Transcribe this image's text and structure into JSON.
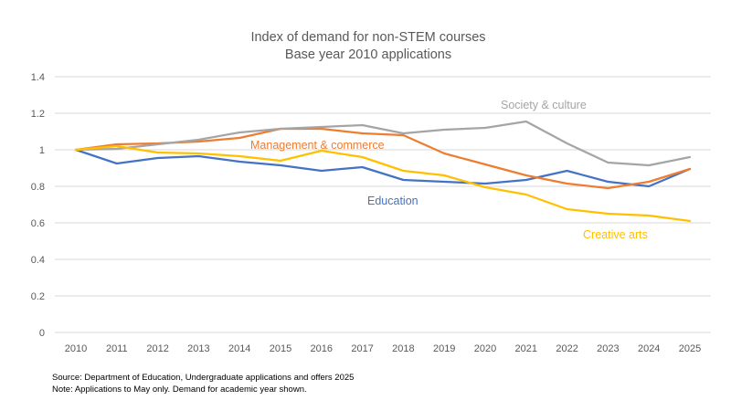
{
  "chart_data": {
    "type": "line",
    "title": "Index of demand for non-STEM courses",
    "subtitle": "Base year 2010 applications",
    "xlabel": "",
    "ylabel": "",
    "ylim": [
      0,
      1.4
    ],
    "yticks": [
      0,
      0.2,
      0.4,
      0.6,
      0.8,
      1,
      1.2,
      1.4
    ],
    "ytick_labels": [
      "0",
      "0.2",
      "0.4",
      "0.6",
      "0.8",
      "1",
      "1.2",
      "1.4"
    ],
    "grid": true,
    "legend": "inline-labels",
    "x": [
      "2010",
      "2011",
      "2012",
      "2013",
      "2014",
      "2015",
      "2016",
      "2017",
      "2018",
      "2019",
      "2020",
      "2021",
      "2022",
      "2023",
      "2024",
      "2025"
    ],
    "series": [
      {
        "name": "Education",
        "color": "#4472C4",
        "values": [
          1.0,
          0.925,
          0.955,
          0.965,
          0.935,
          0.915,
          0.885,
          0.905,
          0.835,
          0.825,
          0.815,
          0.835,
          0.885,
          0.825,
          0.8,
          0.895
        ]
      },
      {
        "name": "Management & commerce",
        "color": "#ED7D31",
        "values": [
          1.0,
          1.03,
          1.035,
          1.045,
          1.065,
          1.115,
          1.115,
          1.09,
          1.08,
          0.98,
          0.92,
          0.86,
          0.815,
          0.79,
          0.825,
          0.895
        ]
      },
      {
        "name": "Society & culture",
        "color": "#A5A5A5",
        "values": [
          1.0,
          1.005,
          1.03,
          1.055,
          1.095,
          1.115,
          1.125,
          1.135,
          1.09,
          1.11,
          1.12,
          1.155,
          1.035,
          0.93,
          0.915,
          0.96
        ]
      },
      {
        "name": "Creative arts",
        "color": "#FFC000",
        "values": [
          1.0,
          1.02,
          0.985,
          0.98,
          0.965,
          0.94,
          0.995,
          0.96,
          0.885,
          0.86,
          0.795,
          0.755,
          0.675,
          0.65,
          0.64,
          0.61
        ]
      }
    ],
    "annotations": [
      {
        "text": "Society & culture",
        "series": "Society & culture",
        "near_x": "2021",
        "position": "above"
      },
      {
        "text": "Management & commerce",
        "series": "Management & commerce",
        "near_x": "2016",
        "position": "below"
      },
      {
        "text": "Education",
        "series": "Education",
        "near_x": "2018",
        "position": "below"
      },
      {
        "text": "Creative arts",
        "series": "Creative arts",
        "near_x": "2024",
        "position": "below"
      }
    ]
  },
  "notes": {
    "source": "Source: Department of Education, Undergraduate applications and offers 2025",
    "note": "Note: Applications to May only.  Demand for academic year shown."
  }
}
